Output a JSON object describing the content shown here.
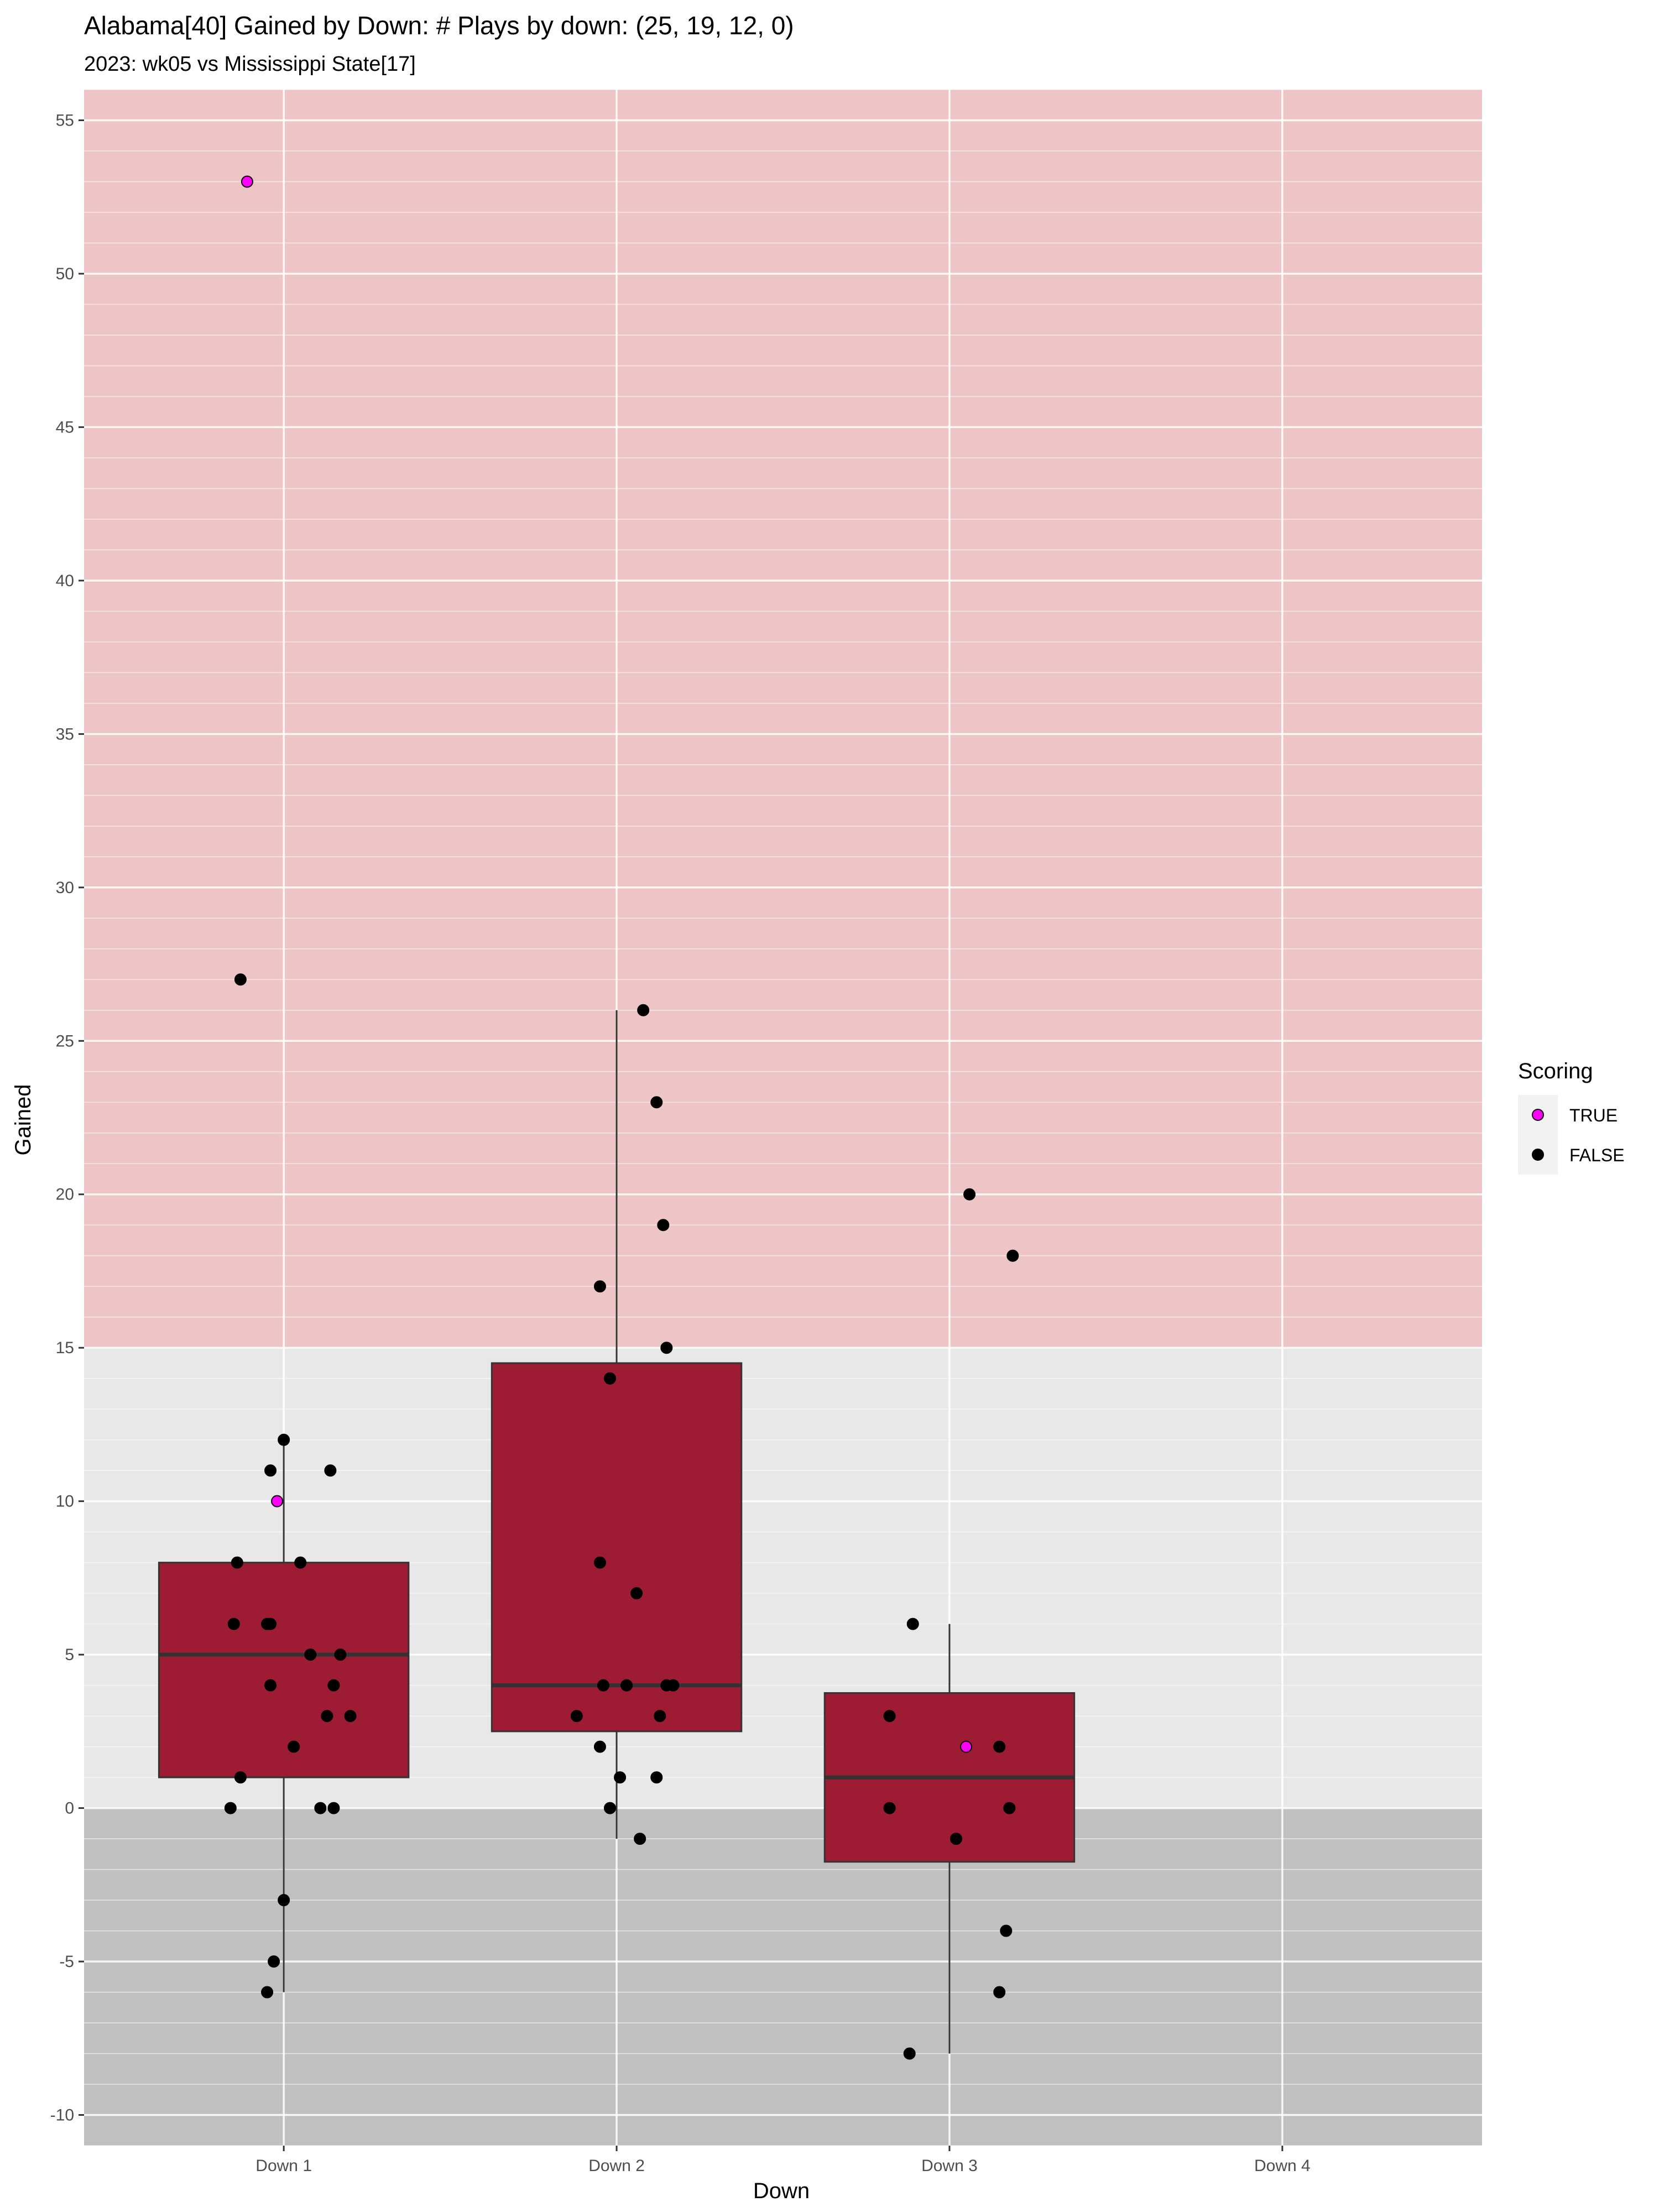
{
  "chart_data": {
    "type": "boxplot",
    "title": "Alabama[40] Gained by Down: # Plays by down: (25, 19, 12, 0)",
    "subtitle": "2023: wk05 vs Mississippi State[17]",
    "xlabel": "Down",
    "ylabel": "Gained",
    "ylim": [
      -11,
      56
    ],
    "y_ticks": [
      -10,
      -5,
      0,
      5,
      10,
      15,
      20,
      25,
      30,
      35,
      40,
      45,
      50,
      55
    ],
    "categories": [
      "Down 1",
      "Down 2",
      "Down 3",
      "Down 4"
    ],
    "grid": true,
    "background_bands": [
      {
        "from": -11,
        "to": 0,
        "color": "#c0c0c0"
      },
      {
        "from": 0,
        "to": 15,
        "color": "#e8e8e8"
      },
      {
        "from": 15,
        "to": 56,
        "color": "#edc5c6"
      }
    ],
    "box_fill": "#9d1b33",
    "boxes": [
      {
        "category": "Down 1",
        "lower_whisker": -6,
        "q1": 1,
        "median": 5,
        "q3": 8,
        "upper_whisker": 12
      },
      {
        "category": "Down 2",
        "lower_whisker": -1,
        "q1": 2.5,
        "median": 4,
        "q3": 14.5,
        "upper_whisker": 26
      },
      {
        "category": "Down 3",
        "lower_whisker": -8,
        "q1": -1.75,
        "median": 1,
        "q3": 3.75,
        "upper_whisker": 6
      },
      {
        "category": "Down 4",
        "lower_whisker": null,
        "q1": null,
        "median": null,
        "q3": null,
        "upper_whisker": null
      }
    ],
    "points": [
      {
        "cat": 1,
        "x": 0.89,
        "y": 53,
        "scoring": true
      },
      {
        "cat": 1,
        "x": 0.87,
        "y": 27,
        "scoring": false
      },
      {
        "cat": 1,
        "x": 1.0,
        "y": 12,
        "scoring": false
      },
      {
        "cat": 1,
        "x": 0.96,
        "y": 11,
        "scoring": false
      },
      {
        "cat": 1,
        "x": 1.14,
        "y": 11,
        "scoring": false
      },
      {
        "cat": 1,
        "x": 0.98,
        "y": 10,
        "scoring": true
      },
      {
        "cat": 1,
        "x": 0.86,
        "y": 8,
        "scoring": false
      },
      {
        "cat": 1,
        "x": 1.05,
        "y": 8,
        "scoring": false
      },
      {
        "cat": 1,
        "x": 0.85,
        "y": 6,
        "scoring": false
      },
      {
        "cat": 1,
        "x": 0.95,
        "y": 6,
        "scoring": false
      },
      {
        "cat": 1,
        "x": 0.96,
        "y": 6,
        "scoring": false
      },
      {
        "cat": 1,
        "x": 1.08,
        "y": 5,
        "scoring": false
      },
      {
        "cat": 1,
        "x": 1.17,
        "y": 5,
        "scoring": false
      },
      {
        "cat": 1,
        "x": 0.96,
        "y": 4,
        "scoring": false
      },
      {
        "cat": 1,
        "x": 1.15,
        "y": 4,
        "scoring": false
      },
      {
        "cat": 1,
        "x": 1.13,
        "y": 3,
        "scoring": false
      },
      {
        "cat": 1,
        "x": 1.2,
        "y": 3,
        "scoring": false
      },
      {
        "cat": 1,
        "x": 1.03,
        "y": 2,
        "scoring": false
      },
      {
        "cat": 1,
        "x": 0.87,
        "y": 1,
        "scoring": false
      },
      {
        "cat": 1,
        "x": 0.84,
        "y": 0,
        "scoring": false
      },
      {
        "cat": 1,
        "x": 1.11,
        "y": 0,
        "scoring": false
      },
      {
        "cat": 1,
        "x": 1.15,
        "y": 0,
        "scoring": false
      },
      {
        "cat": 1,
        "x": 1.0,
        "y": -3,
        "scoring": false
      },
      {
        "cat": 1,
        "x": 0.97,
        "y": -5,
        "scoring": false
      },
      {
        "cat": 1,
        "x": 0.95,
        "y": -6,
        "scoring": false
      },
      {
        "cat": 2,
        "x": 2.08,
        "y": 26,
        "scoring": false
      },
      {
        "cat": 2,
        "x": 2.12,
        "y": 23,
        "scoring": false
      },
      {
        "cat": 2,
        "x": 2.14,
        "y": 19,
        "scoring": false
      },
      {
        "cat": 2,
        "x": 1.95,
        "y": 17,
        "scoring": false
      },
      {
        "cat": 2,
        "x": 2.15,
        "y": 15,
        "scoring": false
      },
      {
        "cat": 2,
        "x": 1.98,
        "y": 14,
        "scoring": false
      },
      {
        "cat": 2,
        "x": 1.95,
        "y": 8,
        "scoring": false
      },
      {
        "cat": 2,
        "x": 2.06,
        "y": 7,
        "scoring": false
      },
      {
        "cat": 2,
        "x": 1.96,
        "y": 4,
        "scoring": false
      },
      {
        "cat": 2,
        "x": 2.03,
        "y": 4,
        "scoring": false
      },
      {
        "cat": 2,
        "x": 2.15,
        "y": 4,
        "scoring": false
      },
      {
        "cat": 2,
        "x": 2.17,
        "y": 4,
        "scoring": false
      },
      {
        "cat": 2,
        "x": 1.88,
        "y": 3,
        "scoring": false
      },
      {
        "cat": 2,
        "x": 2.13,
        "y": 3,
        "scoring": false
      },
      {
        "cat": 2,
        "x": 1.95,
        "y": 2,
        "scoring": false
      },
      {
        "cat": 2,
        "x": 2.01,
        "y": 1,
        "scoring": false
      },
      {
        "cat": 2,
        "x": 2.12,
        "y": 1,
        "scoring": false
      },
      {
        "cat": 2,
        "x": 1.98,
        "y": 0,
        "scoring": false
      },
      {
        "cat": 2,
        "x": 2.07,
        "y": -1,
        "scoring": false
      },
      {
        "cat": 3,
        "x": 3.06,
        "y": 20,
        "scoring": false
      },
      {
        "cat": 3,
        "x": 3.19,
        "y": 18,
        "scoring": false
      },
      {
        "cat": 3,
        "x": 2.89,
        "y": 6,
        "scoring": false
      },
      {
        "cat": 3,
        "x": 2.82,
        "y": 3,
        "scoring": false
      },
      {
        "cat": 3,
        "x": 3.05,
        "y": 2,
        "scoring": true
      },
      {
        "cat": 3,
        "x": 3.15,
        "y": 2,
        "scoring": false
      },
      {
        "cat": 3,
        "x": 2.82,
        "y": 0,
        "scoring": false
      },
      {
        "cat": 3,
        "x": 3.18,
        "y": 0,
        "scoring": false
      },
      {
        "cat": 3,
        "x": 3.02,
        "y": -1,
        "scoring": false
      },
      {
        "cat": 3,
        "x": 3.17,
        "y": -4,
        "scoring": false
      },
      {
        "cat": 3,
        "x": 3.15,
        "y": -6,
        "scoring": false
      },
      {
        "cat": 3,
        "x": 2.88,
        "y": -8,
        "scoring": false
      }
    ],
    "legend": {
      "title": "Scoring",
      "position": "right",
      "items": [
        {
          "label": "TRUE",
          "color": "#ff00ff"
        },
        {
          "label": "FALSE",
          "color": "#000000"
        }
      ]
    }
  }
}
